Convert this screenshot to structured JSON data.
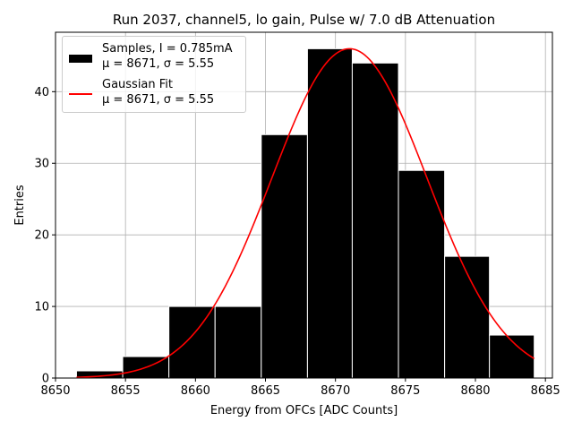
{
  "chart_data": {
    "type": "histogram",
    "title": "Run 2037, channel5, lo gain, Pulse w/ 7.0 dB Attenuation",
    "xlabel": "Energy from OFCs [ADC Counts]",
    "ylabel": "Entries",
    "xlim": [
      8650,
      8685.5
    ],
    "ylim": [
      0,
      48.3
    ],
    "xticks": [
      8650,
      8655,
      8660,
      8665,
      8670,
      8675,
      8680,
      8685
    ],
    "yticks": [
      0,
      10,
      20,
      30,
      40
    ],
    "grid": true,
    "legend_position": "top-left",
    "colors": {
      "histogram": "#000000",
      "fit": "#ff0000",
      "grid": "#b0b0b0"
    },
    "bins": [
      {
        "x0": 8651.5,
        "x1": 8654.8,
        "value": 1
      },
      {
        "x0": 8654.8,
        "x1": 8658.1,
        "value": 3
      },
      {
        "x0": 8658.1,
        "x1": 8661.4,
        "value": 10
      },
      {
        "x0": 8661.4,
        "x1": 8664.7,
        "value": 10
      },
      {
        "x0": 8664.7,
        "x1": 8668.0,
        "value": 34
      },
      {
        "x0": 8668.0,
        "x1": 8671.2,
        "value": 46
      },
      {
        "x0": 8671.2,
        "x1": 8674.5,
        "value": 44
      },
      {
        "x0": 8674.5,
        "x1": 8677.8,
        "value": 29
      },
      {
        "x0": 8677.8,
        "x1": 8681.0,
        "value": 17
      },
      {
        "x0": 8681.0,
        "x1": 8684.2,
        "value": 6
      }
    ],
    "fit": {
      "type": "gaussian",
      "amplitude": 46,
      "mean": 8671,
      "sigma": 5.55,
      "x_range": [
        8651.5,
        8684.2
      ]
    },
    "legend": [
      {
        "kind": "histogram",
        "line1": "Samples, I = 0.785mA",
        "line2": "μ = 8671, σ = 5.55"
      },
      {
        "kind": "fit",
        "line1": "Gaussian Fit",
        "line2": "μ = 8671, σ = 5.55"
      }
    ]
  }
}
